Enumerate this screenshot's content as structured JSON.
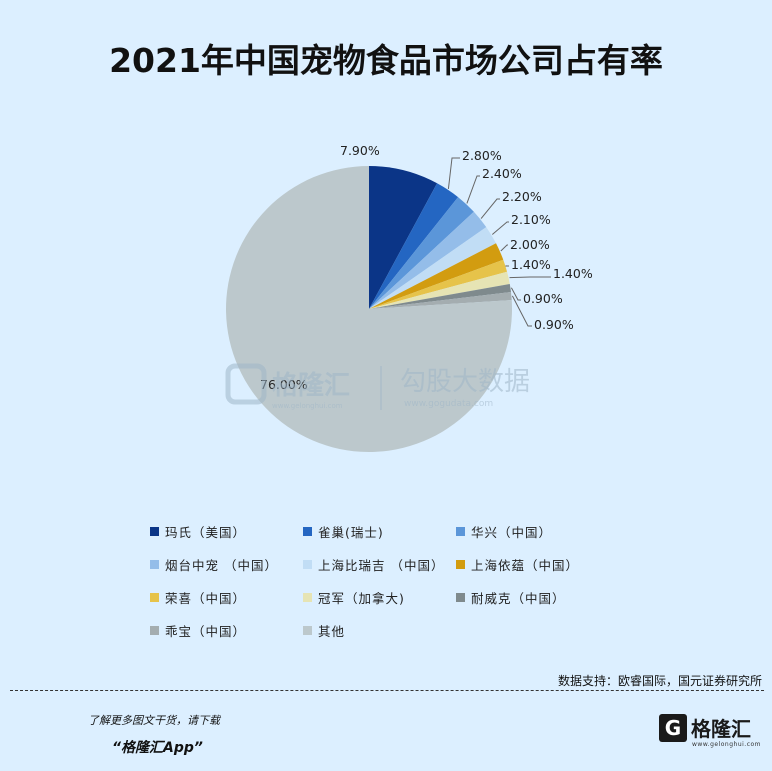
{
  "colors": {
    "background": "#dcefff",
    "slices": [
      "#0b3587",
      "#2466c2",
      "#5b96d9",
      "#94bde9",
      "#c1ddf5",
      "#d29c10",
      "#e6c34a",
      "#e6e4b4",
      "#7f8a8d",
      "#a4adb0",
      "#bcc8cc"
    ]
  },
  "chart_data": {
    "type": "pie",
    "title": "2021年中国宠物食品市场公司占有率",
    "labels": [
      "玛氏（美国）",
      "雀巢(瑞士)",
      "华兴（中国）",
      "烟台中宠 （中国）",
      "上海比瑞吉 （中国）",
      "上海依蕴（中国）",
      "荣喜（中国）",
      "冠军（加拿大)",
      "耐威克（中国）",
      "乖宝（中国）",
      "其他"
    ],
    "values": [
      7.9,
      2.8,
      2.4,
      2.2,
      2.1,
      2.0,
      1.4,
      1.4,
      0.9,
      0.9,
      76.0
    ],
    "data_labels": [
      "7.90%",
      "2.80%",
      "2.40%",
      "2.20%",
      "2.10%",
      "2.00%",
      "1.40%",
      "1.40%",
      "0.90%",
      "0.90%",
      "76.00%"
    ],
    "legend_position": "bottom"
  },
  "watermark": {
    "left_text": "格隆汇",
    "left_sub": "www.gelonghui.com",
    "right_text": "勾股大数据",
    "right_sub": "www.gogudata.com"
  },
  "source_note": "数据支持：欧睿国际，国元证券研究所",
  "footer": {
    "line1": "了解更多图文干货，请下载",
    "line2": "“格隆汇App”",
    "logo_mark": "G",
    "logo_text": "格隆汇",
    "logo_sub": "www.gelonghui.com"
  }
}
